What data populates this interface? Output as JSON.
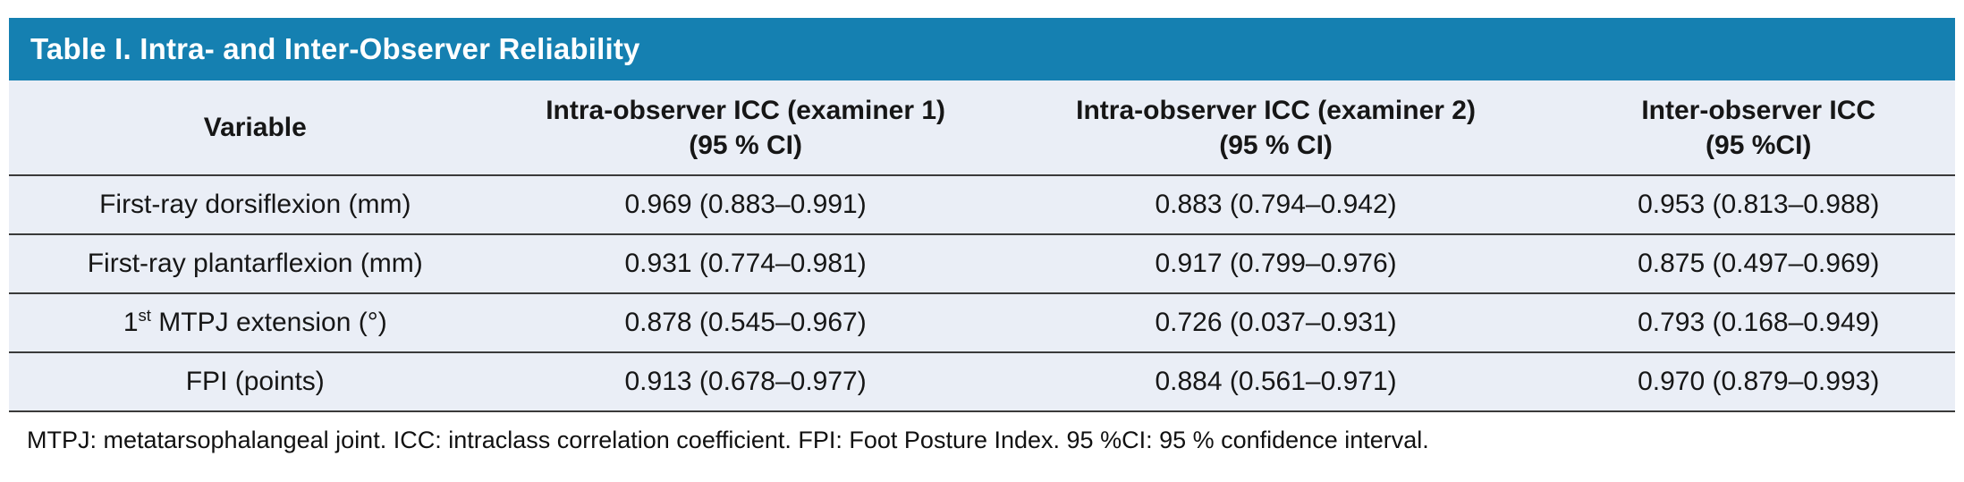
{
  "colors": {
    "accent_bar": "#1580b1",
    "table_background": "#eaeef6",
    "rule_line": "#3a3a3a",
    "title_text": "#ffffff",
    "body_text": "#161616"
  },
  "title": "Table I. Intra- and Inter-Observer Reliability",
  "table": {
    "headers": [
      {
        "line1": "Variable",
        "line2": ""
      },
      {
        "line1": "Intra-observer ICC (examiner 1)",
        "line2": "(95 % CI)"
      },
      {
        "line1": "Intra-observer ICC (examiner 2)",
        "line2": "(95 % CI)"
      },
      {
        "line1": "Inter-observer ICC",
        "line2": "(95 %CI)"
      }
    ],
    "rows": [
      {
        "variable": {
          "pre": "First-ray dorsiflexion (mm)",
          "sup": "",
          "post": ""
        },
        "icc1": "0.969 (0.883–0.991)",
        "icc2": "0.883 (0.794–0.942)",
        "inter": "0.953 (0.813–0.988)"
      },
      {
        "variable": {
          "pre": "First-ray plantarflexion (mm)",
          "sup": "",
          "post": ""
        },
        "icc1": "0.931 (0.774–0.981)",
        "icc2": "0.917 (0.799–0.976)",
        "inter": "0.875 (0.497–0.969)"
      },
      {
        "variable": {
          "pre": "1",
          "sup": "st",
          "post": " MTPJ extension (°)"
        },
        "icc1": "0.878 (0.545–0.967)",
        "icc2": "0.726 (0.037–0.931)",
        "inter": "0.793 (0.168–0.949)"
      },
      {
        "variable": {
          "pre": "FPI (points)",
          "sup": "",
          "post": ""
        },
        "icc1": "0.913 (0.678–0.977)",
        "icc2": "0.884 (0.561–0.971)",
        "inter": "0.970 (0.879–0.993)"
      }
    ]
  },
  "footnote": "MTPJ: metatarsophalangeal joint. ICC: intraclass correlation coefficient. FPI: Foot Posture Index. 95 %CI: 95 % confidence interval."
}
